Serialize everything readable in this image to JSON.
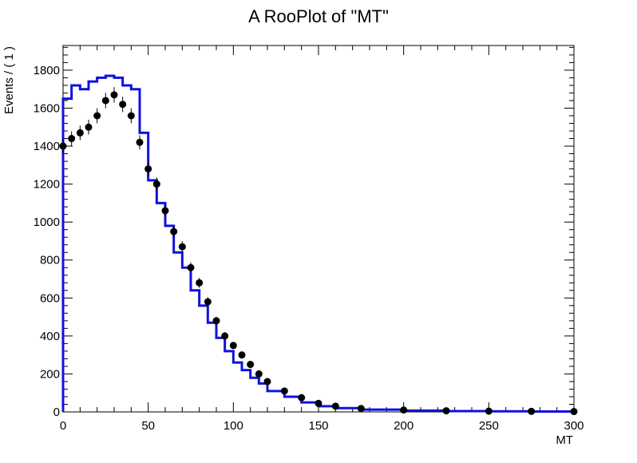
{
  "chart_data": {
    "type": "line",
    "title": "A RooPlot of \"MT\"",
    "xlabel": "MT",
    "ylabel": "Events / ( 1 )",
    "xlim": [
      0,
      300
    ],
    "ylim": [
      0,
      1930
    ],
    "x_ticks": [
      0,
      50,
      100,
      150,
      200,
      250,
      300
    ],
    "y_ticks": [
      0,
      200,
      400,
      600,
      800,
      1000,
      1200,
      1400,
      1600,
      1800
    ],
    "grid": false,
    "legend": "none",
    "series": [
      {
        "style": "points-with-errorbars",
        "color": "#000000",
        "x": [
          0,
          5,
          10,
          15,
          20,
          25,
          30,
          35,
          40,
          45,
          50,
          55,
          60,
          65,
          70,
          75,
          80,
          85,
          90,
          95,
          100,
          105,
          110,
          115,
          120,
          130,
          140,
          150,
          160,
          175,
          200,
          225,
          250,
          275,
          300
        ],
        "y": [
          1400,
          1440,
          1470,
          1500,
          1560,
          1640,
          1670,
          1620,
          1560,
          1420,
          1280,
          1200,
          1060,
          950,
          870,
          760,
          680,
          580,
          480,
          400,
          350,
          300,
          250,
          200,
          160,
          110,
          75,
          45,
          30,
          18,
          10,
          6,
          4,
          3,
          2
        ]
      },
      {
        "style": "step-line",
        "color": "#1010e0",
        "x": [
          0,
          5,
          10,
          15,
          20,
          25,
          30,
          35,
          40,
          45,
          50,
          55,
          60,
          65,
          70,
          75,
          80,
          85,
          90,
          95,
          100,
          105,
          110,
          115,
          120,
          130,
          140,
          150,
          160,
          175,
          200,
          225,
          250,
          275,
          300
        ],
        "y": [
          1650,
          1720,
          1700,
          1740,
          1760,
          1770,
          1760,
          1720,
          1700,
          1470,
          1220,
          1100,
          980,
          840,
          760,
          640,
          560,
          470,
          390,
          320,
          260,
          220,
          180,
          150,
          110,
          80,
          50,
          30,
          20,
          12,
          7,
          4,
          3,
          2,
          1
        ]
      }
    ]
  }
}
